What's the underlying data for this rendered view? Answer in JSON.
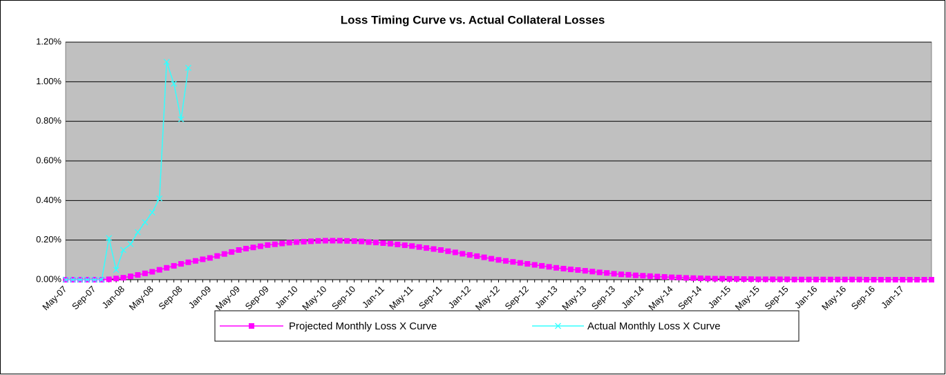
{
  "chart_data": {
    "type": "line",
    "title": "Loss Timing Curve vs. Actual Collateral Losses",
    "categories": [
      "May-07",
      null,
      null,
      null,
      "Sep-07",
      null,
      null,
      null,
      "Jan-08",
      null,
      null,
      null,
      "May-08",
      null,
      null,
      null,
      "Sep-08",
      null,
      null,
      null,
      "Jan-09",
      null,
      null,
      null,
      "May-09",
      null,
      null,
      null,
      "Sep-09",
      null,
      null,
      null,
      "Jan-10",
      null,
      null,
      null,
      "May-10",
      null,
      null,
      null,
      "Sep-10",
      null,
      null,
      null,
      "Jan-11",
      null,
      null,
      null,
      "May-11",
      null,
      null,
      null,
      "Sep-11",
      null,
      null,
      null,
      "Jan-12",
      null,
      null,
      null,
      "May-12",
      null,
      null,
      null,
      "Sep-12",
      null,
      null,
      null,
      "Jan-13",
      null,
      null,
      null,
      "May-13",
      null,
      null,
      null,
      "Sep-13",
      null,
      null,
      null,
      "Jan-14",
      null,
      null,
      null,
      "May-14",
      null,
      null,
      null,
      "Sep-14",
      null,
      null,
      null,
      "Jan-15",
      null,
      null,
      null,
      "May-15",
      null,
      null,
      null,
      "Sep-15",
      null,
      null,
      null,
      "Jan-16",
      null,
      null,
      null,
      "May-16",
      null,
      null,
      null,
      "Sep-16",
      null,
      null,
      null,
      "Jan-17",
      null,
      null,
      null,
      null
    ],
    "series": [
      {
        "name": "Projected Monthly Loss X Curve",
        "color": "#ff00ff",
        "marker": "square",
        "values": [
          0,
          0,
          0,
          0,
          0,
          0,
          0.002,
          0.006,
          0.01,
          0.017,
          0.024,
          0.032,
          0.04,
          0.05,
          0.06,
          0.07,
          0.08,
          0.088,
          0.095,
          0.103,
          0.11,
          0.12,
          0.13,
          0.14,
          0.15,
          0.157,
          0.163,
          0.169,
          0.175,
          0.179,
          0.183,
          0.187,
          0.19,
          0.192,
          0.194,
          0.196,
          0.197,
          0.197,
          0.197,
          0.196,
          0.195,
          0.193,
          0.19,
          0.188,
          0.185,
          0.182,
          0.178,
          0.174,
          0.17,
          0.165,
          0.16,
          0.155,
          0.15,
          0.144,
          0.138,
          0.131,
          0.125,
          0.119,
          0.113,
          0.106,
          0.1,
          0.095,
          0.09,
          0.085,
          0.08,
          0.075,
          0.07,
          0.065,
          0.06,
          0.056,
          0.052,
          0.049,
          0.045,
          0.041,
          0.037,
          0.034,
          0.03,
          0.027,
          0.025,
          0.022,
          0.02,
          0.018,
          0.016,
          0.014,
          0.012,
          0.011,
          0.009,
          0.008,
          0.007,
          0.006,
          0.005,
          0.005,
          0.004,
          0.004,
          0.003,
          0.003,
          0.002,
          0.002,
          0.002,
          0.002,
          0.002,
          0.001,
          0.001,
          0.001,
          0.001,
          0.001,
          0.001,
          0.001,
          0.001,
          0.001,
          0.001,
          0,
          0,
          0,
          0,
          0,
          0,
          0,
          0,
          0,
          0
        ]
      },
      {
        "name": "Actual Monthly Loss X Curve",
        "color": "#33ffff",
        "marker": "cross",
        "values": [
          0,
          0,
          0,
          0,
          0,
          0,
          0.21,
          0.05,
          0.15,
          0.18,
          0.24,
          0.29,
          0.34,
          0.41,
          1.1,
          0.99,
          0.81,
          1.07,
          null,
          null,
          null,
          null,
          null,
          null,
          null,
          null,
          null,
          null,
          null,
          null,
          null,
          null,
          null,
          null,
          null,
          null,
          null,
          null,
          null,
          null,
          null,
          null,
          null,
          null,
          null,
          null,
          null,
          null,
          null,
          null,
          null,
          null,
          null,
          null,
          null,
          null,
          null,
          null,
          null,
          null,
          null,
          null,
          null,
          null,
          null,
          null,
          null,
          null,
          null,
          null,
          null,
          null,
          null,
          null,
          null,
          null,
          null,
          null,
          null,
          null,
          null,
          null,
          null,
          null,
          null,
          null,
          null,
          null,
          null,
          null,
          null,
          null,
          null,
          null,
          null,
          null,
          null,
          null,
          null,
          null,
          null,
          null,
          null,
          null,
          null,
          null,
          null,
          null,
          null,
          null,
          null,
          null,
          null,
          null,
          null,
          null,
          null,
          null,
          null,
          null,
          null
        ]
      }
    ],
    "ylim": [
      0,
      1.2
    ],
    "yticks": [
      {
        "value": 0,
        "label": "0.00%"
      },
      {
        "value": 0.2,
        "label": "0.20%"
      },
      {
        "value": 0.4,
        "label": "0.40%"
      },
      {
        "value": 0.6,
        "label": "0.60%"
      },
      {
        "value": 0.8,
        "label": "0.80%"
      },
      {
        "value": 1.0,
        "label": "1.00%"
      },
      {
        "value": 1.2,
        "label": "1.20%"
      }
    ],
    "grid": true,
    "legend": "bottom"
  }
}
